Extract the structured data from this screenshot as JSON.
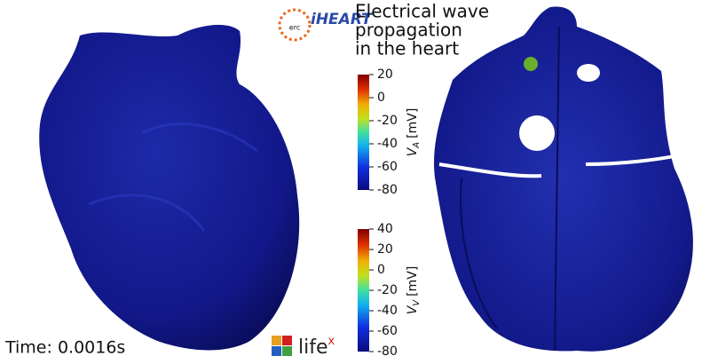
{
  "title_lines": [
    "Electrical wave",
    "propagation",
    "in the heart"
  ],
  "time": "Time: 0.0016s",
  "logos": {
    "erc": "erc",
    "iheart": "iHEART",
    "lifex": "life",
    "lifex_sup": "x"
  },
  "colorbars": [
    {
      "symbol": "V",
      "subscript": "A",
      "unit": "[mV]",
      "range": [
        -80,
        20
      ],
      "ticks": [
        20,
        0,
        -20,
        -40,
        -60,
        -80
      ]
    },
    {
      "symbol": "V",
      "subscript": "V",
      "unit": "[mV]",
      "range": [
        -80,
        40
      ],
      "ticks": [
        40,
        20,
        0,
        -20,
        -40,
        -60,
        -80
      ]
    }
  ]
}
